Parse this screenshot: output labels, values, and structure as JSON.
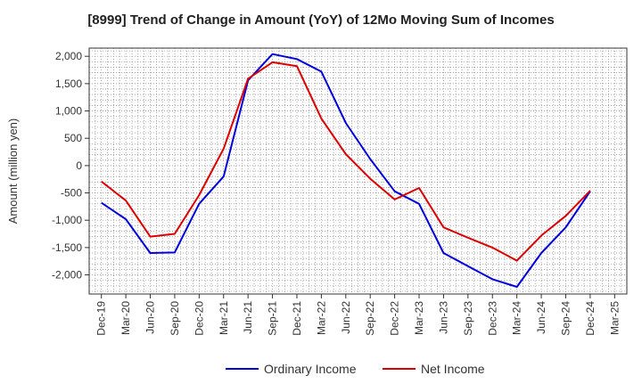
{
  "chart_data": {
    "type": "line",
    "title": "[8999]  Trend of Change in Amount (YoY) of 12Mo Moving Sum of Incomes",
    "xlabel": "",
    "ylabel": "Amount (million yen)",
    "ylim": [
      -2350,
      2150
    ],
    "yticks": [
      2000,
      1500,
      1000,
      500,
      0,
      -500,
      -1000,
      -1500,
      -2000
    ],
    "ytick_labels": [
      "2,000",
      "1,500",
      "1,000",
      "500",
      "0",
      "-500",
      "-1,000",
      "-1,500",
      "-2,000"
    ],
    "categories": [
      "Dec-19",
      "Mar-20",
      "Jun-20",
      "Sep-20",
      "Dec-20",
      "Mar-21",
      "Jun-21",
      "Sep-21",
      "Dec-21",
      "Mar-22",
      "Jun-22",
      "Sep-22",
      "Dec-22",
      "Mar-23",
      "Jun-23",
      "Sep-23",
      "Dec-23",
      "Mar-24",
      "Jun-24",
      "Sep-24",
      "Dec-24",
      "Mar-25"
    ],
    "grid": true,
    "legend_position": "bottom-center",
    "series": [
      {
        "name": "Ordinary Income",
        "color": "#0000dd",
        "values": [
          -680,
          -980,
          -1600,
          -1590,
          -700,
          -200,
          1560,
          2040,
          1950,
          1720,
          780,
          120,
          -470,
          -700,
          -1600,
          -1840,
          -2080,
          -2220,
          -1600,
          -1130,
          -470,
          null
        ]
      },
      {
        "name": "Net Income",
        "color": "#dd0000",
        "values": [
          -290,
          -640,
          -1300,
          -1250,
          -540,
          310,
          1590,
          1890,
          1820,
          860,
          210,
          -240,
          -620,
          -410,
          -1130,
          -1320,
          -1500,
          -1740,
          -1280,
          -920,
          -460,
          null
        ]
      }
    ]
  }
}
